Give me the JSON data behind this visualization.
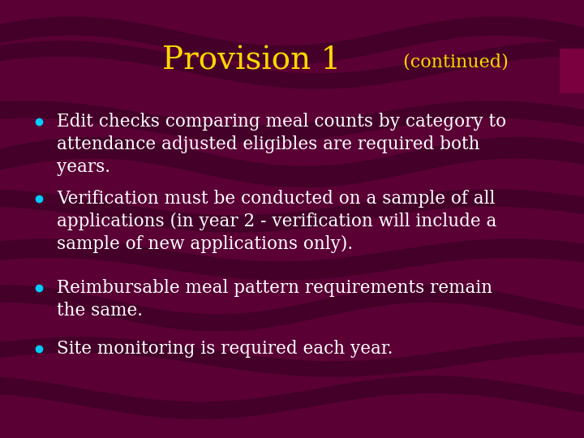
{
  "title_main": "Provision 1",
  "title_sub": " (continued)",
  "title_color": "#FFD700",
  "bg_color": "#5a0035",
  "wave_color": "#7a0050",
  "wave_dark": "#3d0025",
  "bullet_color": "#00CCFF",
  "text_color": "#FFFFFF",
  "bullet_points": [
    "Edit checks comparing meal counts by category to\nattendance adjusted eligibles are required both\nyears.",
    "Verification must be conducted on a sample of all\napplications (in year 2 - verification will include a\nsample of new applications only).",
    "Reimbursable meal pattern requirements remain\nthe same.",
    "Site monitoring is required each year."
  ],
  "figsize": [
    7.2,
    5.4
  ],
  "dpi": 100
}
